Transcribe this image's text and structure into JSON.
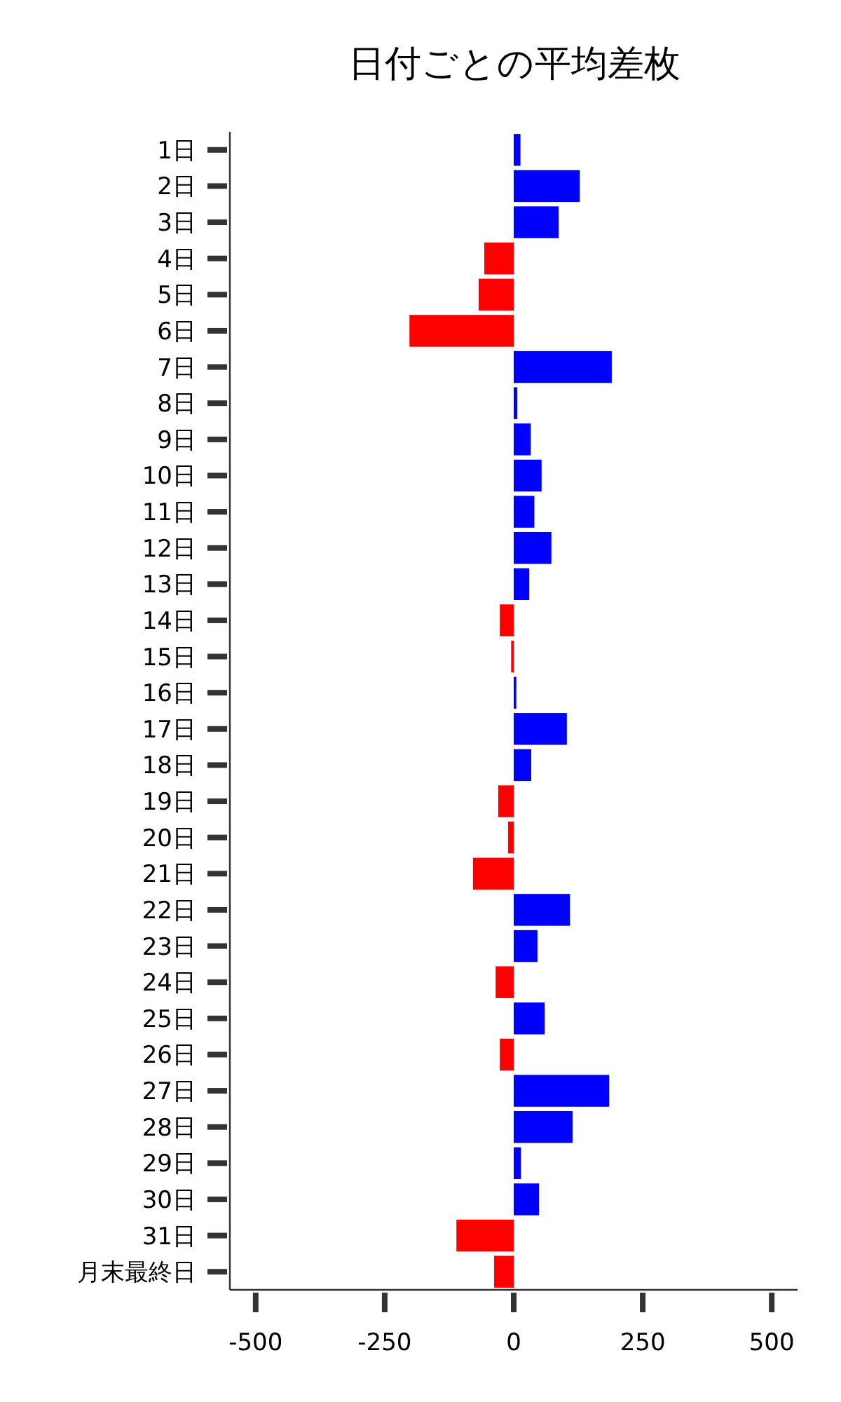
{
  "chart_data": {
    "type": "bar",
    "orientation": "horizontal",
    "title": "日付ごとの平均差枚",
    "categories": [
      "1日",
      "2日",
      "3日",
      "4日",
      "5日",
      "6日",
      "7日",
      "8日",
      "9日",
      "10日",
      "11日",
      "12日",
      "13日",
      "14日",
      "15日",
      "16日",
      "17日",
      "18日",
      "19日",
      "20日",
      "21日",
      "22日",
      "23日",
      "24日",
      "25日",
      "26日",
      "27日",
      "28日",
      "29日",
      "30日",
      "31日",
      "月末最終日"
    ],
    "values": [
      13,
      128,
      87,
      -57,
      -68,
      -202,
      190,
      7,
      33,
      54,
      40,
      73,
      30,
      -27,
      -5,
      5,
      103,
      34,
      -30,
      -11,
      -79,
      109,
      46,
      -35,
      60,
      -27,
      185,
      114,
      14,
      49,
      -111,
      -38
    ],
    "colors": [
      "#0000ff",
      "#0000ff",
      "#0000ff",
      "#ff0000",
      "#ff0000",
      "#ff0000",
      "#0000ff",
      "#0000ff",
      "#0000ff",
      "#0000ff",
      "#0000ff",
      "#0000ff",
      "#0000ff",
      "#ff0000",
      "#ff0000",
      "#0000ff",
      "#0000ff",
      "#0000ff",
      "#ff0000",
      "#ff0000",
      "#ff0000",
      "#0000ff",
      "#0000ff",
      "#ff0000",
      "#0000ff",
      "#ff0000",
      "#0000ff",
      "#0000ff",
      "#0000ff",
      "#0000ff",
      "#ff0000",
      "#ff0000"
    ],
    "xlim": [
      -550,
      550
    ],
    "xticks": [
      -500,
      -250,
      0,
      250,
      500
    ],
    "grid": false
  }
}
